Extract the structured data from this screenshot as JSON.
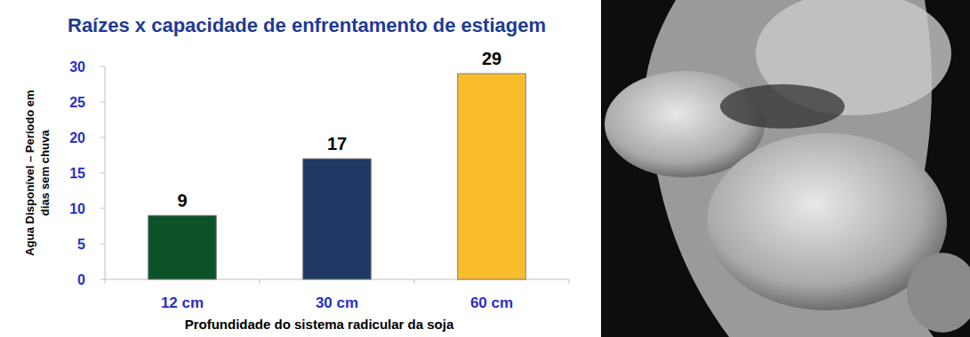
{
  "chart_data": {
    "type": "bar",
    "title": "Raízes x capacidade de enfrentamento de estiagem",
    "y_label": "Agua Disponível – Período em dias sem chuva",
    "x_label": "Profundidade do sistema radicular da soja",
    "categories": [
      "12 cm",
      "30 cm",
      "60 cm"
    ],
    "values": [
      9,
      17,
      29
    ],
    "colors": [
      "#0b5229",
      "#1f3864",
      "#f9bd2b"
    ],
    "ylim": [
      0,
      30
    ],
    "yticks": [
      0,
      5,
      10,
      15,
      20,
      25,
      30
    ],
    "grid": false,
    "data_labels": true
  }
}
